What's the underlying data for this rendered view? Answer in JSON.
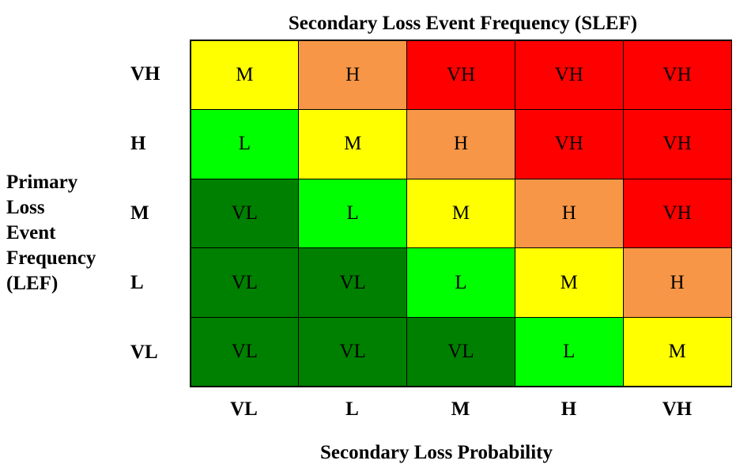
{
  "titles": {
    "top": "Secondary Loss Event Frequency (SLEF)",
    "bottom": "Secondary Loss Probability",
    "side_lines": [
      "Primary",
      "Loss",
      "Event",
      "Frequency",
      "(LEF)"
    ]
  },
  "rows": [
    "VH",
    "H",
    "M",
    "L",
    "VL"
  ],
  "columns": [
    "VL",
    "L",
    "M",
    "H",
    "VH"
  ],
  "colors": {
    "VL": "#008000",
    "L": "#00ff00",
    "M": "#ffff00",
    "H": "#f79646",
    "VH": "#ff0000"
  },
  "matrix": [
    [
      "M",
      "H",
      "VH",
      "VH",
      "VH"
    ],
    [
      "L",
      "M",
      "H",
      "VH",
      "VH"
    ],
    [
      "VL",
      "L",
      "M",
      "H",
      "VH"
    ],
    [
      "VL",
      "VL",
      "L",
      "M",
      "H"
    ],
    [
      "VL",
      "VL",
      "VL",
      "L",
      "M"
    ]
  ]
}
